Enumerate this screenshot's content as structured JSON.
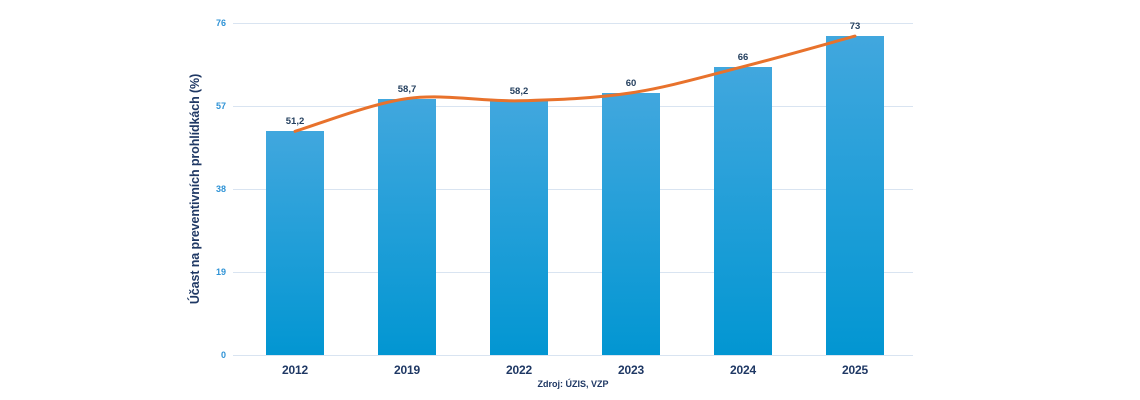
{
  "chart_data": {
    "type": "bar",
    "title": "",
    "categories": [
      "2012",
      "2019",
      "2022",
      "2023",
      "2024",
      "2025"
    ],
    "values": [
      51.2,
      58.7,
      58.2,
      60,
      66,
      73
    ],
    "value_labels": [
      "51,2",
      "58,7",
      "58,2",
      "60",
      "66",
      "73"
    ],
    "overlay": {
      "type": "line",
      "name": "trend-line",
      "values": [
        51.2,
        58.7,
        58.2,
        60,
        66,
        73
      ],
      "smooth": true
    },
    "ylabel": "Účast na preventivních prohlídkách (%)",
    "xlabel": "",
    "yticks": [
      0,
      19,
      38,
      57,
      76
    ],
    "ylim": [
      0,
      76
    ],
    "grid": true,
    "legend": "none",
    "source": "Zdroj: ÚZIS, VZP",
    "colors": {
      "bar_gradient_top": "#41a7de",
      "bar_gradient_bottom": "#0296d2",
      "trend_line": "#e8722c",
      "gridline": "#d9e4f1",
      "tick_label": "#2f93d6",
      "dark_text": "#1f3864"
    }
  }
}
